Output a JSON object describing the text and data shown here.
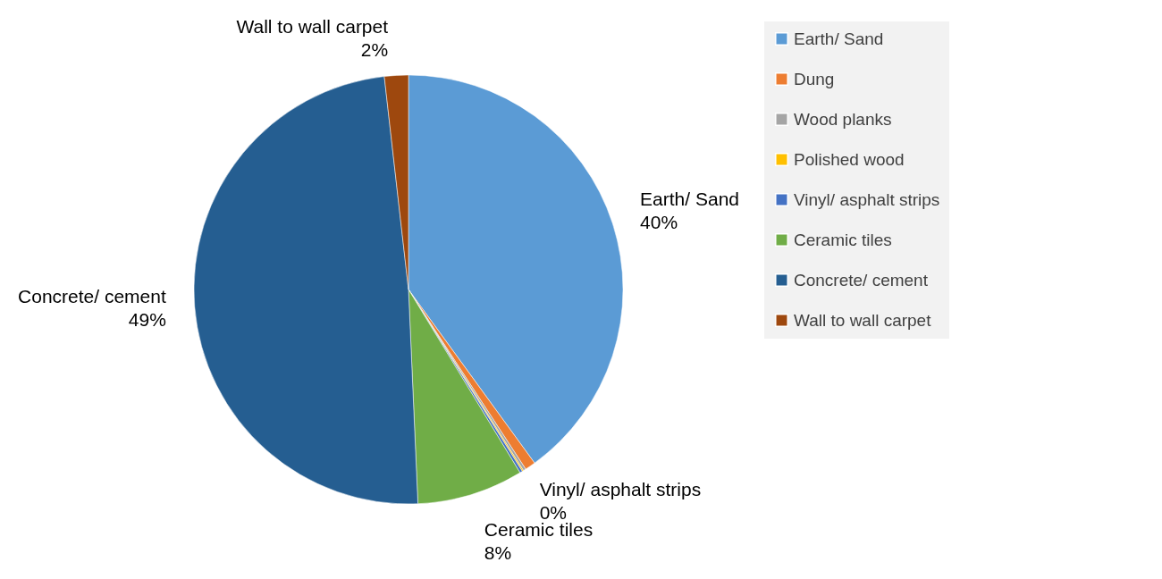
{
  "chart_data": {
    "type": "pie",
    "categories": [
      "Earth/ Sand",
      "Dung",
      "Wood planks",
      "Polished wood",
      "Vinyl/ asphalt strips",
      "Ceramic tiles",
      "Concrete/ cement",
      "Wall to wall carpet"
    ],
    "values": [
      40,
      0.8,
      0.2,
      0.1,
      0.2,
      8,
      48.9,
      1.8
    ],
    "colors": [
      "#5b9bd5",
      "#ed7d31",
      "#a5a5a5",
      "#ffc000",
      "#4472c4",
      "#70ad47",
      "#255e91",
      "#9e480e"
    ],
    "value_labels": [
      "40%",
      null,
      null,
      null,
      "0%",
      "8%",
      "49%",
      "2%"
    ],
    "legend": "right"
  }
}
